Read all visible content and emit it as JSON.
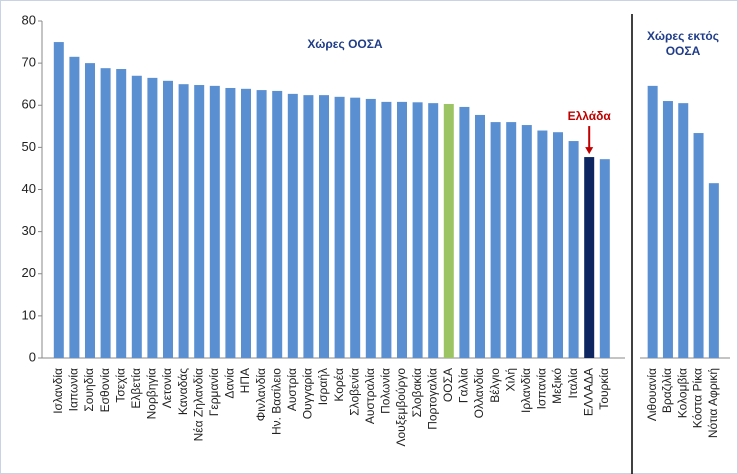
{
  "chart_data": {
    "type": "bar",
    "ylim": [
      0,
      80
    ],
    "yticks": [
      0,
      10,
      20,
      30,
      40,
      50,
      60,
      70,
      80
    ],
    "groups": [
      {
        "title_lines": [
          "Χώρες ΟΟΣΑ"
        ],
        "categories": [
          "Ισλανδία",
          "Ιαπωνία",
          "Σουηδία",
          "Εσθονία",
          "Τσεχία",
          "Ελβετία",
          "Νορβηγία",
          "Λετονία",
          "Καναδάς",
          "Νέα Ζηλανδία",
          "Γερμανία",
          "Δανία",
          "ΗΠΑ",
          "Φινλανδία",
          "Ην. Βασίλειο",
          "Αυστρία",
          "Ουγγαρία",
          "Ισραήλ",
          "Κορέα",
          "Σλοβενία",
          "Αυστραλία",
          "Πολωνία",
          "Λουξεμβούργο",
          "Σλοβακία",
          "Πορτογαλία",
          "ΟΟΣΑ",
          "Γαλλία",
          "Ολλανδία",
          "Βέλγιο",
          "Χιλή",
          "Ιρλανδία",
          "Ισπανία",
          "Μεξικό",
          "Ιταλία",
          "ΕΛΛΑΔΑ",
          "Τουρκία"
        ],
        "values": [
          75,
          71.5,
          70,
          68.8,
          68.6,
          67,
          66.5,
          65.8,
          65,
          64.8,
          64.6,
          64.1,
          63.9,
          63.6,
          63.4,
          62.7,
          62.4,
          62.4,
          62,
          61.8,
          61.5,
          60.8,
          60.8,
          60.7,
          60.5,
          60.3,
          59.6,
          57.7,
          56,
          56,
          55.3,
          54,
          53.6,
          51.5,
          47.7,
          47.2
        ],
        "colors": [
          "#5a8fd2",
          "#5a8fd2",
          "#5a8fd2",
          "#5a8fd2",
          "#5a8fd2",
          "#5a8fd2",
          "#5a8fd2",
          "#5a8fd2",
          "#5a8fd2",
          "#5a8fd2",
          "#5a8fd2",
          "#5a8fd2",
          "#5a8fd2",
          "#5a8fd2",
          "#5a8fd2",
          "#5a8fd2",
          "#5a8fd2",
          "#5a8fd2",
          "#5a8fd2",
          "#5a8fd2",
          "#5a8fd2",
          "#5a8fd2",
          "#5a8fd2",
          "#5a8fd2",
          "#5a8fd2",
          "#9cc464",
          "#5a8fd2",
          "#5a8fd2",
          "#5a8fd2",
          "#5a8fd2",
          "#5a8fd2",
          "#5a8fd2",
          "#5a8fd2",
          "#5a8fd2",
          "#0d2560",
          "#5a8fd2"
        ]
      },
      {
        "title_lines": [
          "Χώρες εκτός",
          "ΟΟΣΑ"
        ],
        "categories": [
          "Λιθουανία",
          "Βραζιλία",
          "Κολομβία",
          "Κόστα Ρίκα",
          "Νότια Αφρική"
        ],
        "values": [
          64.6,
          61,
          60.5,
          53.4,
          41.5
        ],
        "colors": [
          "#5a8fd2",
          "#5a8fd2",
          "#5a8fd2",
          "#5a8fd2",
          "#5a8fd2"
        ]
      }
    ],
    "annotation": {
      "text": "Ελλάδα",
      "color": "#c00000"
    }
  }
}
